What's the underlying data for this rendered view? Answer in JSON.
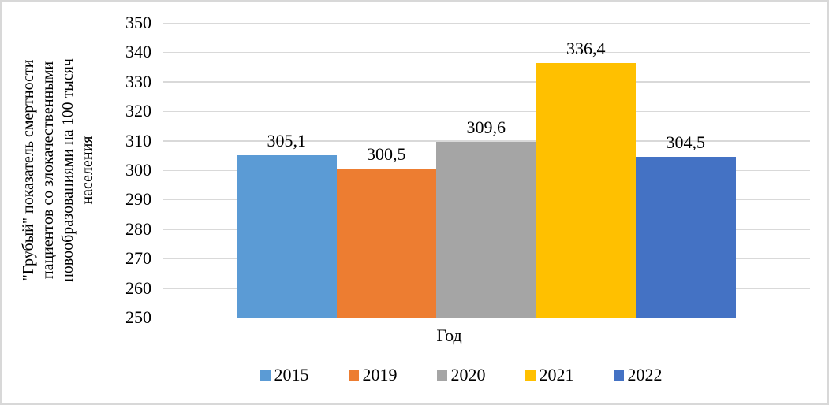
{
  "chart_data": {
    "type": "bar",
    "title": "",
    "xlabel": "Год",
    "ylabel": "\"Грубый\" показатель смертности пациентов со злокачественными новообразованиями на 100 тысяч населения",
    "ylabel_lines": [
      "\"Грубый\" показатель смертности",
      "пациентов со злокачественными",
      "новообразованиями на 100 тысяч",
      "населения"
    ],
    "ylim": [
      250,
      350
    ],
    "ytick_step": 10,
    "yticks": [
      "350",
      "340",
      "330",
      "320",
      "310",
      "300",
      "290",
      "280",
      "270",
      "260",
      "250"
    ],
    "grid": true,
    "legend_position": "bottom",
    "categories": [
      "2015",
      "2019",
      "2020",
      "2021",
      "2022"
    ],
    "series": [
      {
        "name": "2015",
        "value": 305.1,
        "label": "305,1",
        "color": "#5B9BD5"
      },
      {
        "name": "2019",
        "value": 300.5,
        "label": "300,5",
        "color": "#ED7D31"
      },
      {
        "name": "2020",
        "value": 309.6,
        "label": "309,6",
        "color": "#A5A5A5"
      },
      {
        "name": "2021",
        "value": 336.4,
        "label": "336,4",
        "color": "#FFC000"
      },
      {
        "name": "2022",
        "value": 304.5,
        "label": "304,5",
        "color": "#4472C4"
      }
    ]
  },
  "colors": {
    "gridline": "#D9D9D9",
    "frame_border": "#D8D8D8",
    "text": "#000000",
    "background": "#FFFFFF"
  }
}
